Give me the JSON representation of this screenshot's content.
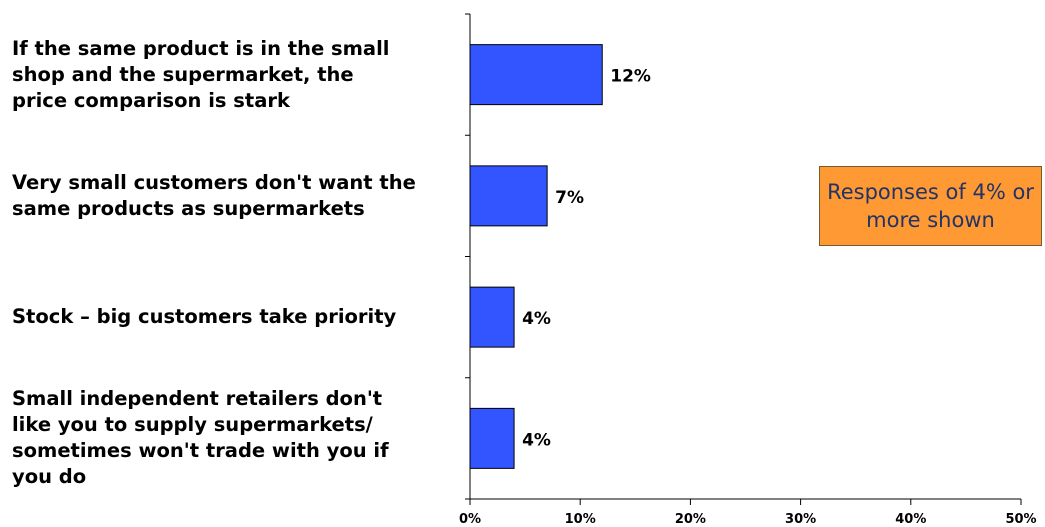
{
  "chart_data": {
    "type": "bar",
    "orientation": "horizontal",
    "categories": [
      "If the same product is in the small shop and the supermarket, the price comparison is stark",
      "Very small customers don't want the same products as supermarkets",
      "Stock – big customers take priority",
      "Small independent retailers don't like you to supply supermarkets/ sometimes won't trade with you if you do"
    ],
    "category_lines": [
      "If the same product is in the small\nshop and the supermarket, the\nprice comparison is stark",
      "Very small customers don't want the\nsame products as supermarkets",
      "Stock – big customers take priority",
      "Small independent retailers don't\nlike you to supply supermarkets/\nsometimes won't trade with you if\nyou do"
    ],
    "values": [
      12,
      7,
      4,
      4
    ],
    "data_labels": [
      "12%",
      "7%",
      "4%",
      "4%"
    ],
    "xlim": [
      0,
      50
    ],
    "xticks": [
      "0%",
      "10%",
      "20%",
      "30%",
      "40%",
      "50%"
    ],
    "title": "",
    "xlabel": "",
    "ylabel": "",
    "grid": false,
    "bar_color": "#3355ff"
  },
  "note": {
    "text": "Responses of 4% or more shown",
    "color": "#ff9933"
  }
}
